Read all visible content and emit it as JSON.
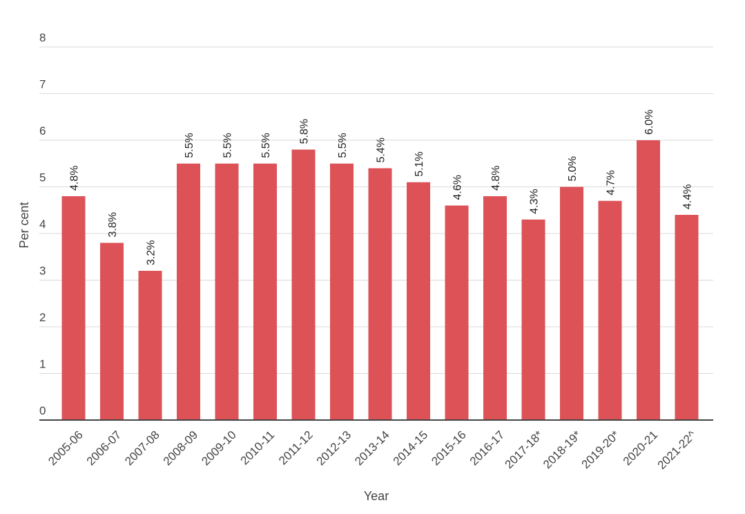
{
  "chart_data": {
    "type": "bar",
    "title": "",
    "xlabel": "Year",
    "ylabel": "Per cent",
    "categories": [
      "2005-06",
      "2006-07",
      "2007-08",
      "2008-09",
      "2009-10",
      "2010-11",
      "2011-12",
      "2012-13",
      "2013-14",
      "2014-15",
      "2015-16",
      "2016-17",
      "2017-18*",
      "2018-19*",
      "2019-20*",
      "2020-21",
      "2021-22^"
    ],
    "values": [
      4.8,
      3.8,
      3.2,
      5.5,
      5.5,
      5.5,
      5.8,
      5.5,
      5.4,
      5.1,
      4.6,
      4.8,
      4.3,
      5.0,
      4.7,
      6.0,
      4.4
    ],
    "value_labels": [
      "4.8%",
      "3.8%",
      "3.2%",
      "5.5%",
      "5.5%",
      "5.5%",
      "5.8%",
      "5.5%",
      "5.4%",
      "5.1%",
      "4.6%",
      "4.8%",
      "4.3%",
      "5.0%",
      "4.7%",
      "6.0%",
      "4.4%"
    ],
    "ylim": [
      0,
      8
    ],
    "yticks": [
      "0",
      "1",
      "2",
      "3",
      "4",
      "5",
      "6",
      "7",
      "8"
    ],
    "grid": true,
    "legend": "none",
    "bar_color": "#dc5257"
  }
}
